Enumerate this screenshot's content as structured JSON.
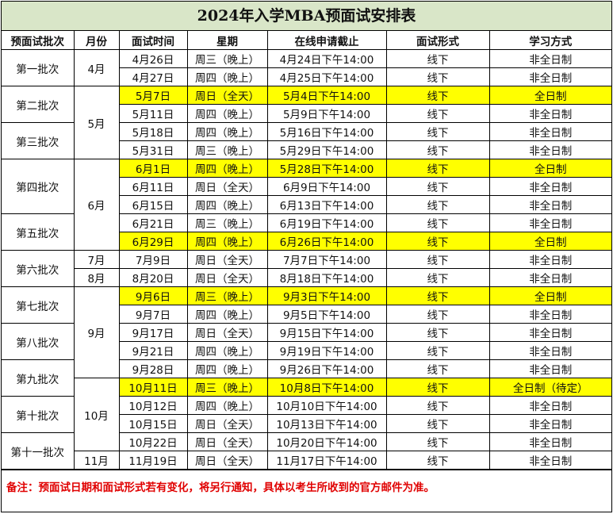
{
  "title": "2024年入学MBA预面试安排表",
  "headers": [
    "预面试批次",
    "月份",
    "面试时间",
    "星期",
    "在线申请截止",
    "面试形式",
    "学习方式"
  ],
  "rows": [
    {
      "batch": "第一批次",
      "batch_span": 2,
      "month": "4月",
      "month_span": 2,
      "date": "4月26日",
      "weekday": "周三（晚上）",
      "deadline": "4月24日下午14:00",
      "format": "线下",
      "study": "非全日制",
      "highlight": false
    },
    {
      "date": "4月27日",
      "weekday": "周四（晚上）",
      "deadline": "4月25日下午14:00",
      "format": "线下",
      "study": "非全日制",
      "highlight": false
    },
    {
      "batch": "第二批次",
      "batch_span": 2,
      "month": "5月",
      "month_span": 4,
      "date": "5月7日",
      "weekday": "周日（全天）",
      "deadline": "5月4日下午14:00",
      "format": "线下",
      "study": "全日制",
      "highlight": true
    },
    {
      "date": "5月11日",
      "weekday": "周四（晚上）",
      "deadline": "5月9日下午14:00",
      "format": "线下",
      "study": "非全日制",
      "highlight": false
    },
    {
      "batch": "第三批次",
      "batch_span": 2,
      "date": "5月18日",
      "weekday": "周四（晚上）",
      "deadline": "5月16日下午14:00",
      "format": "线下",
      "study": "非全日制",
      "highlight": false
    },
    {
      "date": "5月31日",
      "weekday": "周三（晚上）",
      "deadline": "5月29日下午14:00",
      "format": "线下",
      "study": "非全日制",
      "highlight": false
    },
    {
      "batch": "第四批次",
      "batch_span": 3,
      "month": "6月",
      "month_span": 5,
      "date": "6月1日",
      "weekday": "周四（晚上）",
      "deadline": "5月28日下午14:00",
      "format": "线下",
      "study": "全日制",
      "highlight": true
    },
    {
      "date": "6月11日",
      "weekday": "周日（全天）",
      "deadline": "6月9日下午14:00",
      "format": "线下",
      "study": "非全日制",
      "highlight": false
    },
    {
      "date": "6月15日",
      "weekday": "周四（晚上）",
      "deadline": "6月13日下午14:00",
      "format": "线下",
      "study": "非全日制",
      "highlight": false
    },
    {
      "batch": "第五批次",
      "batch_span": 2,
      "date": "6月21日",
      "weekday": "周三（晚上）",
      "deadline": "6月19日下午14:00",
      "format": "线下",
      "study": "非全日制",
      "highlight": false
    },
    {
      "date": "6月29日",
      "weekday": "周四（晚上）",
      "deadline": "6月26日下午14:00",
      "format": "线下",
      "study": "全日制",
      "highlight": true
    },
    {
      "batch": "第六批次",
      "batch_span": 2,
      "month": "7月",
      "month_span": 1,
      "date": "7月9日",
      "weekday": "周日（全天）",
      "deadline": "7月7日下午14:00",
      "format": "线下",
      "study": "非全日制",
      "highlight": false
    },
    {
      "month": "8月",
      "month_span": 1,
      "date": "8月20日",
      "weekday": "周日（全天）",
      "deadline": "8月18日下午14:00",
      "format": "线下",
      "study": "非全日制",
      "highlight": false
    },
    {
      "batch": "第七批次",
      "batch_span": 2,
      "month": "9月",
      "month_span": 5,
      "date": "9月6日",
      "weekday": "周三（晚上）",
      "deadline": "9月3日下午14:00",
      "format": "线下",
      "study": "全日制",
      "highlight": true
    },
    {
      "date": "9月7日",
      "weekday": "周四（晚上）",
      "deadline": "9月5日下午14:00",
      "format": "线下",
      "study": "非全日制",
      "highlight": false
    },
    {
      "batch": "第八批次",
      "batch_span": 2,
      "date": "9月17日",
      "weekday": "周日（全天）",
      "deadline": "9月15日下午14:00",
      "format": "线下",
      "study": "非全日制",
      "highlight": false
    },
    {
      "date": "9月21日",
      "weekday": "周四（晚上）",
      "deadline": "9月19日下午14:00",
      "format": "线下",
      "study": "非全日制",
      "highlight": false
    },
    {
      "batch": "第九批次",
      "batch_span": 2,
      "date": "9月28日",
      "weekday": "周四（晚上）",
      "deadline": "9月26日下午14:00",
      "format": "线下",
      "study": "非全日制",
      "highlight": false
    },
    {
      "month": "10月",
      "month_span": 4,
      "date": "10月11日",
      "weekday": "周三（晚上）",
      "deadline": "10月8日下午14:00",
      "format": "线下",
      "study": "全日制（待定）",
      "highlight": true
    },
    {
      "batch": "第十批次",
      "batch_span": 2,
      "date": "10月12日",
      "weekday": "周四（晚上）",
      "deadline": "10月10日下午14:00",
      "format": "线下",
      "study": "非全日制",
      "highlight": false
    },
    {
      "date": "10月15日",
      "weekday": "周日（全天）",
      "deadline": "10月13日下午14:00",
      "format": "线下",
      "study": "非全日制",
      "highlight": false
    },
    {
      "batch": "第十一批次",
      "batch_span": 2,
      "date": "10月22日",
      "weekday": "周日（全天）",
      "deadline": "10月20日下午14:00",
      "format": "线下",
      "study": "非全日制",
      "highlight": false
    },
    {
      "month": "11月",
      "month_span": 1,
      "date": "11月19日",
      "weekday": "周日（全天）",
      "deadline": "11月17日下午14:00",
      "format": "线下",
      "study": "非全日制",
      "highlight": false
    }
  ],
  "note": "备注：预面试日期和面试形式若有变化，将另行通知，具体以考生所收到的官方邮件为准。",
  "colors": {
    "title_bg": "#d9e6c8",
    "highlight": "#ffff00",
    "note": "#e00000"
  }
}
